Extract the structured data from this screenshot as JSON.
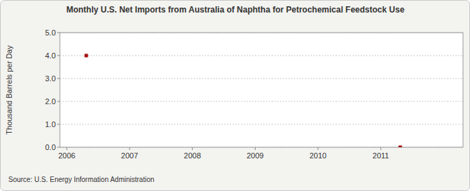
{
  "chart_data": {
    "type": "scatter",
    "title": "Monthly U.S. Net Imports from Australia of Naphtha for Petrochemical Feedstock Use",
    "y_label": "Thousand Barrels per Day",
    "source": "Source: U.S. Energy Information Administration",
    "x": [
      2006.31,
      2011.31
    ],
    "values": [
      4.0,
      0.0
    ],
    "color": "#a50f0f",
    "marker": "square",
    "xlim": [
      2005.89,
      2012.31
    ],
    "ylim": [
      0,
      5
    ],
    "xticks": [
      2006,
      2007,
      2008,
      2009,
      2010,
      2011
    ],
    "yticks": [
      {
        "value": 0,
        "label": "0.0"
      },
      {
        "value": 1,
        "label": "1.0"
      },
      {
        "value": 2,
        "label": "2.0"
      },
      {
        "value": 3,
        "label": "3.0"
      },
      {
        "value": 4,
        "label": "4.0"
      },
      {
        "value": 5,
        "label": "5.0"
      }
    ],
    "grid": true
  }
}
